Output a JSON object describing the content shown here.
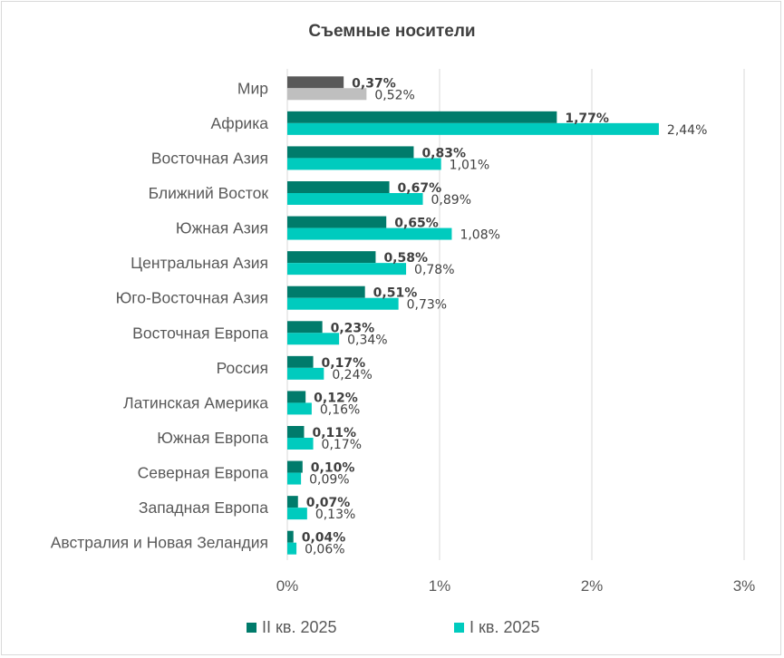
{
  "chart_data": {
    "type": "bar",
    "orientation": "horizontal",
    "title": "Съемные носители",
    "categories": [
      "Мир",
      "Африка",
      "Восточная Азия",
      "Ближний Восток",
      "Южная Азия",
      "Центральная Азия",
      "Юго-Восточная Азия",
      "Восточная Европа",
      "Россия",
      "Латинская Америка",
      "Южная Европа",
      "Северная Европа",
      "Западная Европа",
      "Австралия и Новая Зеландия"
    ],
    "series": [
      {
        "name": "II кв. 2025",
        "color": "#007b6b",
        "highlight_color": "#595959",
        "values": [
          0.37,
          1.77,
          0.83,
          0.67,
          0.65,
          0.58,
          0.51,
          0.23,
          0.17,
          0.12,
          0.11,
          0.1,
          0.07,
          0.04
        ],
        "labels": [
          "0,37%",
          "1,77%",
          "0,83%",
          "0,67%",
          "0,65%",
          "0,58%",
          "0,51%",
          "0,23%",
          "0,17%",
          "0,12%",
          "0,11%",
          "0,10%",
          "0,07%",
          "0,04%"
        ]
      },
      {
        "name": "I кв. 2025",
        "color": "#00cbbe",
        "highlight_color": "#bfbfbf",
        "values": [
          0.52,
          2.44,
          1.01,
          0.89,
          1.08,
          0.78,
          0.73,
          0.34,
          0.24,
          0.16,
          0.17,
          0.09,
          0.13,
          0.06
        ],
        "labels": [
          "0,52%",
          "2,44%",
          "1,01%",
          "0,89%",
          "1,08%",
          "0,78%",
          "0,73%",
          "0,34%",
          "0,24%",
          "0,16%",
          "0,17%",
          "0,09%",
          "0,13%",
          "0,06%"
        ]
      }
    ],
    "xlim": [
      0,
      3
    ],
    "x_ticks": [
      0,
      1,
      2,
      3
    ],
    "x_tick_labels": [
      "0%",
      "1%",
      "2%",
      "3%"
    ],
    "grid": "vertical",
    "legend": "bottom",
    "highlight_category": "Мир"
  }
}
